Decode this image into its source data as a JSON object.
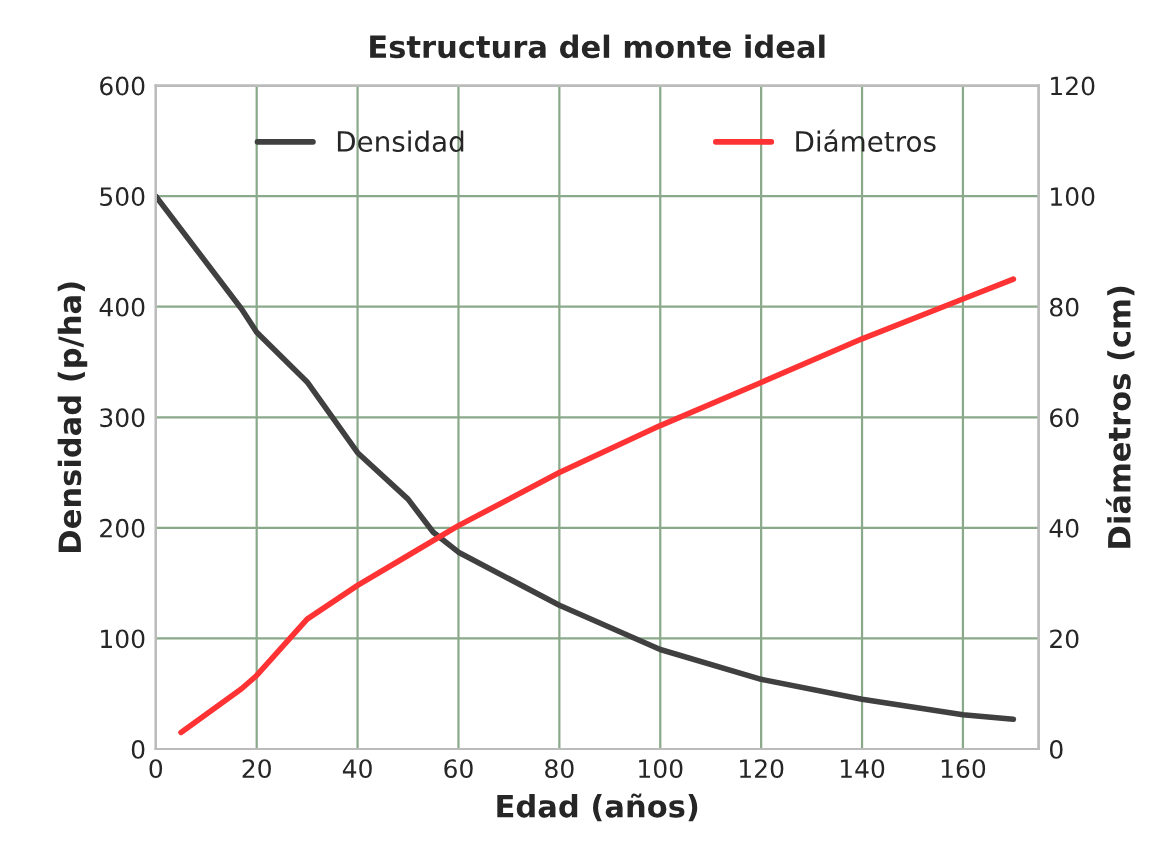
{
  "chart_data": {
    "type": "line",
    "title": "Estructura del monte ideal",
    "xlabel": "Edad (años)",
    "ylabel": "Densidad (p/ha)",
    "y2label": "Diámetros (cm)",
    "xlim": [
      0,
      175
    ],
    "xticks": [
      0,
      20,
      40,
      60,
      80,
      100,
      120,
      140,
      160
    ],
    "ylim": [
      0,
      600
    ],
    "yticks": [
      0,
      100,
      200,
      300,
      400,
      500,
      600
    ],
    "y2lim": [
      0,
      120
    ],
    "y2ticks": [
      0,
      20,
      40,
      60,
      80,
      100,
      120
    ],
    "grid": true,
    "legend": "top",
    "marker": "none",
    "line_style": "solid",
    "series": [
      {
        "name": "Densidad",
        "color": "#404040",
        "x": [
          0,
          17,
          20,
          30,
          40,
          50,
          55,
          60,
          80,
          100,
          120,
          140,
          160,
          170
        ],
        "values": [
          500,
          398,
          377,
          332,
          268,
          226,
          196,
          178,
          130,
          90,
          63,
          45,
          31,
          27
        ]
      },
      {
        "name": "Diámetros",
        "color": "#ff3333",
        "axis": "y2",
        "x": [
          5,
          17,
          20,
          30,
          40,
          50,
          60,
          80,
          100,
          120,
          140,
          160,
          170
        ],
        "values": [
          3,
          10.9,
          13.3,
          23.5,
          29.6,
          35,
          40.4,
          50,
          58.5,
          66.3,
          74.2,
          81.4,
          85
        ]
      }
    ]
  }
}
